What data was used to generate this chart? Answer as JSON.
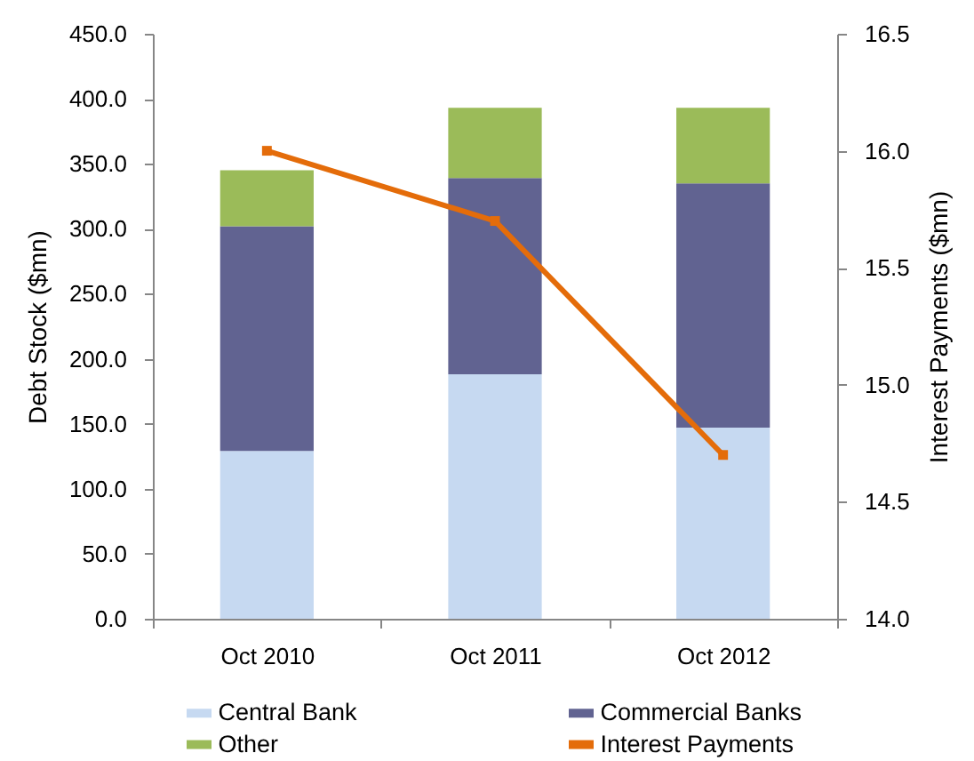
{
  "chart_data": {
    "type": "bar",
    "stacked": true,
    "categories": [
      "Oct 2010",
      "Oct 2011",
      "Oct 2012"
    ],
    "series": [
      {
        "name": "Central Bank",
        "color": "#c6d9f1",
        "values": [
          129,
          188,
          147
        ]
      },
      {
        "name": "Commercial Banks",
        "color": "#616391",
        "values": [
          173,
          151,
          188
        ]
      },
      {
        "name": "Other",
        "color": "#9bbb59",
        "values": [
          43,
          54,
          58
        ]
      },
      {
        "name": "Interest Payments",
        "type": "line",
        "axis": "y2",
        "color": "#e46c0a",
        "values": [
          16.0,
          15.7,
          14.7
        ]
      }
    ],
    "ylabel": "Debt Stock ($mn)",
    "y2label": "Interest Payments ($mn)",
    "ylim": [
      0,
      450
    ],
    "yticks": [
      {
        "value": 0,
        "label": "0.0"
      },
      {
        "value": 50,
        "label": "50.0"
      },
      {
        "value": 100,
        "label": "100.0"
      },
      {
        "value": 150,
        "label": "150.0"
      },
      {
        "value": 200,
        "label": "200.0"
      },
      {
        "value": 250,
        "label": "250.0"
      },
      {
        "value": 300,
        "label": "300.0"
      },
      {
        "value": 350,
        "label": "350.0"
      },
      {
        "value": 400,
        "label": "400.0"
      },
      {
        "value": 450,
        "label": "450.0"
      }
    ],
    "y2lim": [
      14,
      16.5
    ],
    "y2ticks": [
      {
        "value": 14,
        "label": "14.0"
      },
      {
        "value": 14.5,
        "label": "14.5"
      },
      {
        "value": 15,
        "label": "15.0"
      },
      {
        "value": 15.5,
        "label": "15.5"
      },
      {
        "value": 16,
        "label": "16.0"
      },
      {
        "value": 16.5,
        "label": "16.5"
      }
    ],
    "marker": "square",
    "legend": "bottom"
  }
}
